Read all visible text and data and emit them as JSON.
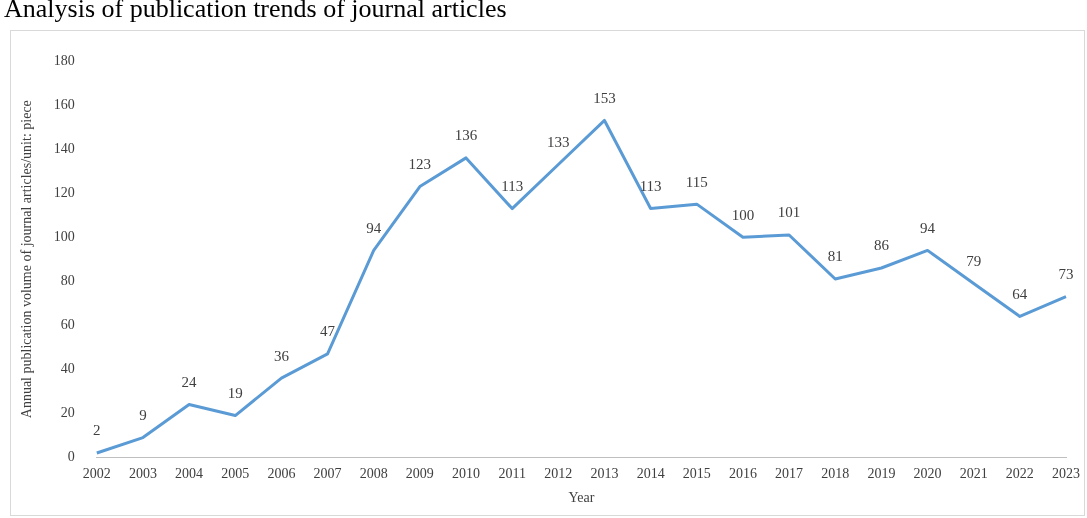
{
  "chart_data": {
    "type": "line",
    "title": "Analysis of publication trends of journal articles",
    "xlabel": "Year",
    "ylabel": "Annual publication volume of journal articles/unit: piece",
    "categories": [
      "2002",
      "2003",
      "2004",
      "2005",
      "2006",
      "2007",
      "2008",
      "2009",
      "2010",
      "2011",
      "2012",
      "2013",
      "2014",
      "2015",
      "2016",
      "2017",
      "2018",
      "2019",
      "2020",
      "2021",
      "2022",
      "2023"
    ],
    "series": [
      {
        "color": "#5b9bd5",
        "values": [
          2,
          9,
          24,
          19,
          36,
          47,
          94,
          123,
          136,
          113,
          133,
          153,
          113,
          115,
          100,
          101,
          81,
          86,
          94,
          79,
          64,
          73
        ]
      }
    ],
    "ylim": [
      0,
      180
    ],
    "yticks": [
      0,
      20,
      40,
      60,
      80,
      100,
      120,
      140,
      160,
      180
    ],
    "grid": false,
    "legend": false,
    "marker": "none",
    "data_labels": true
  }
}
